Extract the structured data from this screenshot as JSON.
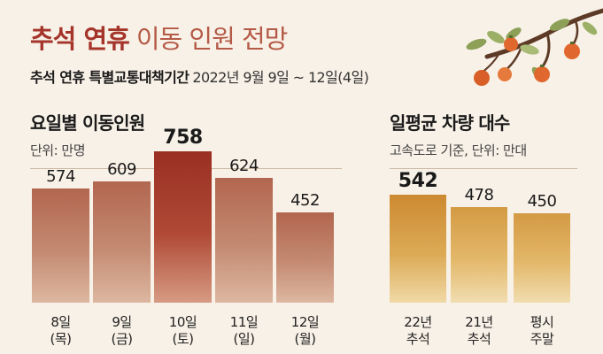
{
  "header": {
    "title_bold": "추석 연휴",
    "title_light": "이동 인원 전망",
    "subtitle_bold": "추석 연휴 특별교통대책기간",
    "subtitle_period": "2022년 9월 9일 ~ 12일(4일)"
  },
  "colors": {
    "background": "#f8f1e7",
    "bar_brown": "#b5705a",
    "bar_highlight": "#a33a2a",
    "bar_gold": "#d8a248",
    "title_red": "#a5342a",
    "persimmon": "#e0672e",
    "leaf": "#8da058"
  },
  "chart_data": [
    {
      "type": "bar",
      "title": "요일별 이동인원",
      "unit": "단위: 만명",
      "categories": [
        {
          "line1": "8일",
          "line2": "(목)"
        },
        {
          "line1": "9일",
          "line2": "(금)"
        },
        {
          "line1": "10일",
          "line2": "(토)"
        },
        {
          "line1": "11일",
          "line2": "(일)"
        },
        {
          "line1": "12일",
          "line2": "(월)"
        }
      ],
      "values": [
        574,
        609,
        758,
        624,
        452
      ],
      "value_labels": [
        "574",
        "609",
        "758",
        "624",
        "452"
      ],
      "highlight_index": 2,
      "ylim": [
        0,
        800
      ]
    },
    {
      "type": "bar",
      "title": "일평균 차량 대수",
      "unit": "고속도로 기준, 단위: 만대",
      "categories": [
        {
          "line1": "22년",
          "line2": "추석"
        },
        {
          "line1": "21년",
          "line2": "추석"
        },
        {
          "line1": "평시",
          "line2": "주말"
        }
      ],
      "values": [
        542,
        478,
        450
      ],
      "value_labels": [
        "542",
        "478",
        "450"
      ],
      "highlight_index": 0,
      "ylim": [
        0,
        800
      ]
    }
  ]
}
